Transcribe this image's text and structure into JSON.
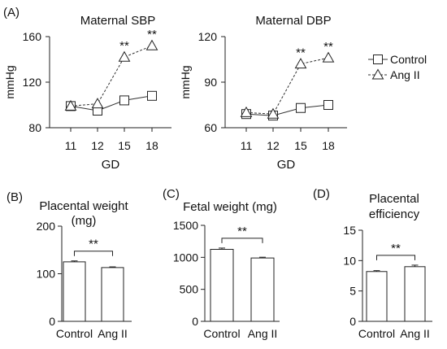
{
  "figure": {
    "panel_labels": [
      "(A)",
      "(B)",
      "(C)",
      "(D)"
    ],
    "legend": {
      "items": [
        {
          "label": "Control",
          "marker": "square",
          "line": "solid"
        },
        {
          "label": "Ang II",
          "marker": "triangle",
          "line": "dashed"
        }
      ],
      "placement": "right"
    },
    "significance_mark": "**"
  },
  "chart_data": [
    {
      "id": "sbp",
      "type": "line",
      "title": "Maternal SBP",
      "xlabel": "GD",
      "ylabel": "mmHg",
      "categories": [
        "11",
        "12",
        "15",
        "18"
      ],
      "ylim": [
        80,
        160
      ],
      "yticks": [
        80,
        120,
        160
      ],
      "series": [
        {
          "name": "Control",
          "values": [
            99,
            95,
            104,
            108
          ]
        },
        {
          "name": "Ang II",
          "values": [
            99,
            101,
            142,
            152
          ]
        }
      ],
      "annotations": [
        {
          "category": "15",
          "text": "**"
        },
        {
          "category": "18",
          "text": "**"
        }
      ]
    },
    {
      "id": "dbp",
      "type": "line",
      "title": "Maternal DBP",
      "xlabel": "GD",
      "ylabel": "mmHg",
      "categories": [
        "11",
        "12",
        "15",
        "18"
      ],
      "ylim": [
        60,
        120
      ],
      "yticks": [
        60,
        90,
        120
      ],
      "series": [
        {
          "name": "Control",
          "values": [
            69,
            68,
            73,
            75
          ]
        },
        {
          "name": "Ang II",
          "values": [
            70,
            69,
            102,
            106
          ]
        }
      ],
      "annotations": [
        {
          "category": "15",
          "text": "**"
        },
        {
          "category": "18",
          "text": "**"
        }
      ]
    },
    {
      "id": "placental",
      "type": "bar",
      "title": [
        "Placental weight",
        "(mg)"
      ],
      "categories": [
        "Control",
        "Ang II"
      ],
      "values": [
        125,
        113
      ],
      "errors": [
        2,
        1.5
      ],
      "ylim": [
        0,
        200
      ],
      "yticks": [
        0,
        100,
        200
      ],
      "annotation": "**"
    },
    {
      "id": "fetal",
      "type": "bar",
      "title": [
        "Fetal weight (mg)"
      ],
      "categories": [
        "Control",
        "Ang II"
      ],
      "values": [
        1125,
        990
      ],
      "errors": [
        20,
        12
      ],
      "ylim": [
        0,
        1500
      ],
      "yticks": [
        0,
        500,
        1000,
        1500
      ],
      "annotation": "**"
    },
    {
      "id": "efficiency",
      "type": "bar",
      "title": [
        "Placental",
        "efficiency"
      ],
      "categories": [
        "Control",
        "Ang II"
      ],
      "values": [
        8.2,
        9.0
      ],
      "errors": [
        0.15,
        0.25
      ],
      "ylim": [
        0,
        15
      ],
      "yticks": [
        0,
        5,
        10,
        15
      ],
      "annotation": "**"
    }
  ]
}
